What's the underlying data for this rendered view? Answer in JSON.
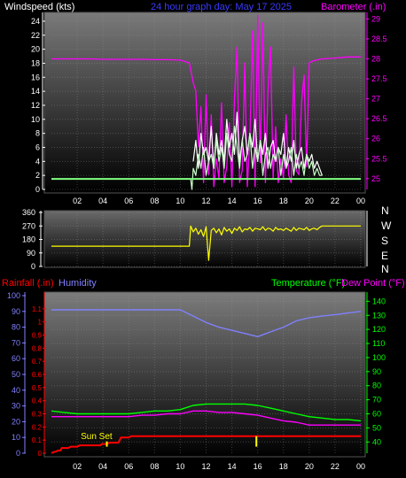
{
  "header": {
    "left_label": "Windspeed (kts)",
    "center_label": "24 hour graph day:  May 17 2025",
    "right_label": "Barometer (.in)"
  },
  "colors": {
    "white": "#ffffff",
    "blue": "#3a3aff",
    "magenta": "#ff00ff",
    "wind": "#c8ffc8",
    "gust": "#ffffff",
    "avg": "#80ff80",
    "dir": "#ffff00",
    "temp": "#00ff00",
    "dew": "#ff00ff",
    "humidity": "#8080ff",
    "rain": "#ff0000",
    "sun": "#ffff00",
    "red_axis": "#ff0000",
    "green_axis": "#00ff00",
    "humidity_axis": "#8080ff"
  },
  "chart_data": [
    {
      "type": "line",
      "x_tick_labels": [
        "02",
        "04",
        "06",
        "08",
        "10",
        "12",
        "14",
        "16",
        "18",
        "20",
        "22",
        "00"
      ],
      "left_axis": {
        "ticks": [
          "0",
          "2",
          "4",
          "6",
          "8",
          "10",
          "12",
          "14",
          "16",
          "18",
          "20",
          "22",
          "24"
        ],
        "range": [
          0,
          25
        ]
      },
      "right_axis": {
        "ticks": [
          "25",
          "25.5",
          "26",
          "26.5",
          "27",
          "27.5",
          "28",
          "28.5",
          "29"
        ],
        "range": [
          24.73,
          29.12
        ]
      },
      "series": [
        {
          "role": "barometer",
          "x": [
            0,
            1,
            2,
            3,
            4,
            5,
            6,
            7,
            8,
            9,
            10,
            10.7,
            11.0,
            11.2,
            11.4,
            11.6,
            11.8,
            12.0,
            12.2,
            12.4,
            12.6,
            12.8,
            13.0,
            13.2,
            13.4,
            13.6,
            13.8,
            14.0,
            14.2,
            14.4,
            14.6,
            14.8,
            15.0,
            15.2,
            15.4,
            15.6,
            15.8,
            16.0,
            16.2,
            16.4,
            16.6,
            16.8,
            17.0,
            17.2,
            17.4,
            17.6,
            17.8,
            18.0,
            18.2,
            18.4,
            18.6,
            18.8,
            19.0,
            19.2,
            19.4,
            19.6,
            19.8,
            20.0,
            20.3,
            21,
            22,
            23,
            24
          ],
          "values": [
            28.0,
            28.0,
            28.0,
            28.0,
            27.99,
            27.99,
            27.99,
            27.99,
            27.98,
            27.98,
            27.97,
            27.9,
            27.4,
            27.2,
            25.8,
            26.8,
            24.9,
            27.1,
            25.1,
            26.6,
            24.8,
            25.5,
            25.0,
            26.9,
            24.9,
            25.3,
            26.4,
            24.8,
            27.0,
            28.3,
            24.9,
            25.2,
            27.9,
            24.8,
            26.0,
            28.7,
            24.8,
            29.1,
            25.4,
            28.9,
            24.9,
            27.2,
            28.3,
            25.0,
            26.3,
            24.9,
            25.5,
            25.0,
            26.6,
            25.1,
            24.9,
            27.8,
            25.2,
            25.1,
            26.9,
            27.6,
            25.3,
            27.9,
            27.95,
            28.0,
            28.02,
            28.05,
            28.05
          ]
        },
        {
          "role": "windspeed",
          "x": [
            0,
            1,
            2,
            3,
            4,
            5,
            6,
            7,
            8,
            9,
            10,
            10.8,
            10.9,
            11.0,
            11.2,
            11.4,
            11.6,
            11.8,
            12.0,
            12.2,
            12.4,
            12.6,
            12.8,
            13.0,
            13.2,
            13.4,
            13.6,
            13.8,
            14.0,
            14.2,
            14.4,
            14.6,
            14.8,
            15.0,
            15.2,
            15.4,
            15.6,
            15.8,
            16.0,
            16.2,
            16.4,
            16.6,
            16.8,
            17.0,
            17.2,
            17.4,
            17.6,
            17.8,
            18.0,
            18.2,
            18.4,
            18.6,
            18.8,
            19.0,
            19.2,
            19.4,
            19.6,
            19.8,
            20.0,
            20.2,
            20.4,
            20.6,
            20.8,
            21.0
          ],
          "values": [
            1.5,
            1.5,
            1.5,
            1.5,
            1.5,
            1.5,
            1.5,
            1.5,
            1.5,
            1.5,
            1.5,
            1.5,
            0,
            3,
            2,
            5,
            3,
            6,
            2,
            4,
            5,
            3,
            7,
            4,
            6,
            3,
            8,
            5,
            4,
            9,
            6,
            3,
            7,
            4,
            5,
            8,
            3,
            6,
            4,
            7,
            2,
            5,
            6,
            3,
            5,
            4,
            6,
            2,
            5,
            3,
            4,
            6,
            2,
            5,
            3,
            4,
            2,
            5,
            3,
            4,
            2,
            3,
            2,
            2
          ]
        },
        {
          "role": "gust",
          "x": [
            11.0,
            11.2,
            11.4,
            11.6,
            11.8,
            12.0,
            12.2,
            12.4,
            12.6,
            12.8,
            13.0,
            13.2,
            13.4,
            13.6,
            13.8,
            14.0,
            14.2,
            14.4,
            14.6,
            14.8,
            15.0,
            15.2,
            15.4,
            15.6,
            15.8,
            16.0,
            16.2,
            16.4,
            16.6,
            16.8,
            17.0,
            17.2,
            17.4,
            17.6,
            17.8,
            18.0,
            18.2,
            18.4,
            18.6,
            18.8,
            19.0,
            19.2,
            19.4,
            19.6,
            19.8,
            20.0,
            20.2,
            20.4,
            20.6,
            20.8,
            21.0
          ],
          "values": [
            4,
            7,
            3,
            8,
            5,
            6,
            4,
            9,
            3,
            8,
            5,
            7,
            4,
            10,
            6,
            8,
            5,
            11,
            4,
            7,
            9,
            5,
            8,
            6,
            10,
            4,
            7,
            5,
            8,
            3,
            6,
            7,
            4,
            6,
            5,
            8,
            3,
            6,
            4,
            7,
            3,
            5,
            6,
            3,
            5,
            4,
            5,
            3,
            4,
            3,
            2
          ]
        },
        {
          "role": "avg",
          "x": [
            0,
            24
          ],
          "values": [
            1.5,
            1.5
          ]
        }
      ]
    },
    {
      "type": "line",
      "x_tick_labels": [
        "02",
        "04",
        "06",
        "08",
        "10",
        "12",
        "14",
        "16",
        "18",
        "20",
        "22",
        "00"
      ],
      "left_axis": {
        "ticks": [
          "0",
          "90",
          "180",
          "270",
          "360"
        ],
        "range": [
          0,
          360
        ]
      },
      "right_labels": [
        "N",
        "W",
        "S",
        "E",
        "N"
      ],
      "series": [
        {
          "role": "direction",
          "x": [
            0,
            10.7,
            10.8,
            11.0,
            11.2,
            11.4,
            11.6,
            11.8,
            12.0,
            12.2,
            12.4,
            12.6,
            12.8,
            13.0,
            13.2,
            13.4,
            13.6,
            13.8,
            14.0,
            14.2,
            14.4,
            14.6,
            14.8,
            15.0,
            15.2,
            15.4,
            15.6,
            15.8,
            16.0,
            16.2,
            16.4,
            16.6,
            16.8,
            17.0,
            17.2,
            17.4,
            17.6,
            17.8,
            18.0,
            18.2,
            18.4,
            18.6,
            18.8,
            19.0,
            19.2,
            19.4,
            19.6,
            19.8,
            20.0,
            20.2,
            20.4,
            20.6,
            20.8,
            21.0,
            22,
            23,
            24
          ],
          "values": [
            135,
            135,
            270,
            230,
            255,
            215,
            245,
            200,
            265,
            40,
            240,
            255,
            225,
            250,
            210,
            260,
            235,
            250,
            220,
            255,
            240,
            265,
            230,
            250,
            245,
            260,
            235,
            255,
            250,
            245,
            265,
            240,
            255,
            250,
            235,
            260,
            245,
            250,
            240,
            255,
            245,
            235,
            260,
            240,
            255,
            250,
            245,
            260,
            240,
            250,
            255,
            245,
            260,
            270,
            270,
            270,
            270
          ]
        }
      ]
    },
    {
      "type": "line",
      "header": {
        "rain": "Rainfall (.in)",
        "humidity": "Humidity",
        "temp": "Temperature (°F)",
        "dew": "Dew Point (°F)"
      },
      "x_tick_labels": [
        "02",
        "04",
        "06",
        "08",
        "10",
        "12",
        "14",
        "16",
        "18",
        "20",
        "22",
        "00"
      ],
      "humidity_axis": {
        "ticks": [
          "0",
          "10",
          "20",
          "30",
          "40",
          "50",
          "60",
          "70",
          "80",
          "90",
          "100"
        ],
        "range": [
          0,
          100
        ]
      },
      "rain_axis": {
        "ticks": [
          "0",
          "0.1",
          "0.2",
          "0.3",
          "0.4",
          "0.5",
          "0.6",
          "0.7",
          "0.8",
          "0.9",
          "1",
          "1.1"
        ],
        "range": [
          0,
          1.2
        ]
      },
      "temp_axis": {
        "ticks": [
          "40",
          "50",
          "60",
          "70",
          "80",
          "90",
          "100",
          "110",
          "120",
          "130",
          "140"
        ],
        "range": [
          32,
          144
        ]
      },
      "sunset_label": "Sun Set",
      "series": [
        {
          "role": "humidity",
          "x": [
            0,
            1,
            2,
            3,
            4,
            5,
            6,
            7,
            8,
            9,
            10,
            11,
            12,
            13,
            14,
            15,
            16,
            17,
            18,
            19,
            20,
            21,
            22,
            23,
            24
          ],
          "values": [
            91,
            91,
            91,
            91,
            91,
            91,
            91,
            91,
            91,
            91,
            91,
            87,
            83,
            80,
            78,
            76,
            74,
            77,
            80,
            84,
            86,
            87,
            88,
            89,
            90
          ]
        },
        {
          "role": "temperature",
          "x": [
            0,
            1,
            2,
            3,
            4,
            5,
            6,
            7,
            8,
            9,
            10,
            11,
            12,
            13,
            14,
            15,
            16,
            17,
            18,
            19,
            20,
            21,
            22,
            23,
            24
          ],
          "values": [
            62,
            61,
            60,
            60,
            60,
            60,
            60,
            61,
            62,
            62,
            63,
            66,
            67,
            67,
            67,
            67,
            66,
            64,
            62,
            60,
            58,
            57,
            56,
            56,
            55
          ]
        },
        {
          "role": "dewpoint",
          "x": [
            0,
            1,
            2,
            3,
            4,
            5,
            6,
            7,
            8,
            9,
            10,
            11,
            12,
            13,
            14,
            15,
            16,
            17,
            18,
            19,
            20,
            21,
            22,
            23,
            24
          ],
          "values": [
            58,
            58,
            58,
            58,
            58,
            58,
            58,
            59,
            59,
            60,
            60,
            62,
            62,
            61,
            61,
            60,
            59,
            57,
            55,
            54,
            52,
            52,
            52,
            52,
            52
          ]
        },
        {
          "role": "rainfall",
          "x": [
            0,
            0.2,
            0.3,
            0.5,
            0.7,
            0.8,
            1.3,
            1.5,
            2.0,
            2.2,
            3.8,
            3.9,
            4.3,
            4.5,
            5.2,
            5.4,
            6.0,
            6.2,
            8,
            10,
            12,
            14,
            16,
            18,
            20,
            22,
            24
          ],
          "values": [
            0,
            0.01,
            0.01,
            0.02,
            0.02,
            0.04,
            0.04,
            0.05,
            0.05,
            0.06,
            0.06,
            0.07,
            0.07,
            0.08,
            0.08,
            0.12,
            0.12,
            0.13,
            0.13,
            0.13,
            0.13,
            0.13,
            0.13,
            0.13,
            0.13,
            0.13,
            0.13
          ]
        }
      ],
      "sunset_time": 4.3,
      "marker_time": 15.9
    }
  ]
}
